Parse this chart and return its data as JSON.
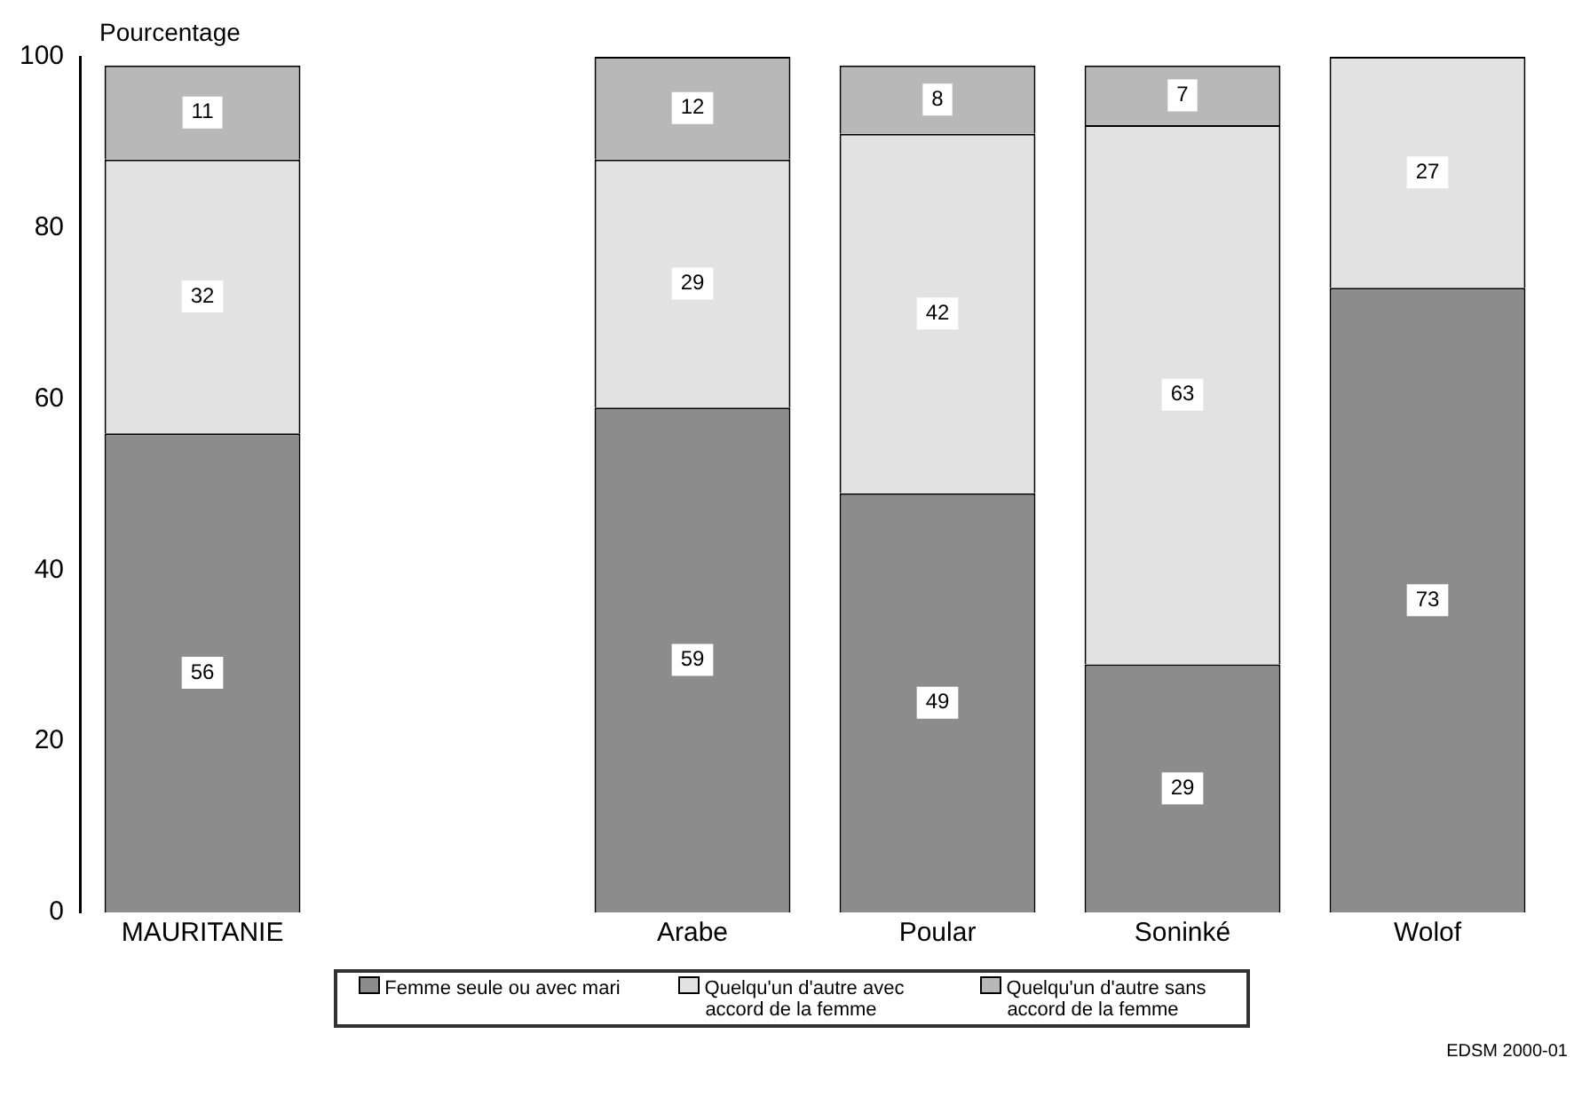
{
  "chart_data": {
    "type": "bar",
    "stacked": true,
    "ylabel": "Pourcentage",
    "categories": [
      "MAURITANIE",
      null,
      "Arabe",
      "Poular",
      "Soninké",
      "Wolof"
    ],
    "series": [
      {
        "name": "Femme seule ou avec mari",
        "color": "#8c8c8c",
        "values": [
          56,
          null,
          59,
          49,
          29,
          73
        ]
      },
      {
        "name": "Quelqu'un d'autre avec accord de la femme",
        "color": "#e2e2e2",
        "values": [
          32,
          null,
          29,
          42,
          63,
          27
        ]
      },
      {
        "name": "Quelqu'un d'autre sans accord de la femme",
        "color": "#b8b8b8",
        "values": [
          11,
          null,
          12,
          8,
          7,
          null
        ]
      }
    ],
    "ylim": [
      0,
      100
    ],
    "yticks": [
      0,
      20,
      40,
      60,
      80,
      100
    ],
    "grid": false,
    "data_labels": true,
    "legend": "bottom",
    "annotations": [
      "EDSM 2000-01"
    ]
  }
}
